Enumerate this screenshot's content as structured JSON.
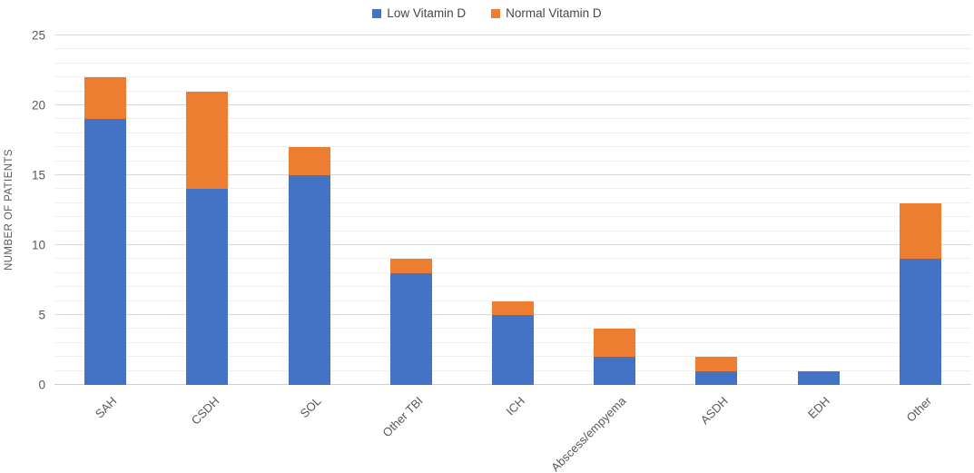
{
  "chart_data": {
    "type": "bar",
    "stacked": true,
    "categories": [
      "SAH",
      "CSDH",
      "SOL",
      "Other TBI",
      "ICH",
      "Abscess/empyema",
      "ASDH",
      "EDH",
      "Other"
    ],
    "series": [
      {
        "name": "Low Vitamin D",
        "color": "#4472C4",
        "values": [
          19,
          14,
          15,
          8,
          5,
          2,
          1,
          1,
          9
        ]
      },
      {
        "name": "Normal Vitamin D",
        "color": "#ED7D31",
        "values": [
          3,
          7,
          2,
          1,
          1,
          2,
          1,
          0,
          4
        ]
      }
    ],
    "totals": [
      22,
      21,
      17,
      9,
      6,
      4,
      2,
      1,
      13
    ],
    "xlabel": "",
    "ylabel": "NUMBER OF PATIENTS",
    "ylim": [
      0,
      25
    ],
    "y_ticks": [
      0,
      5,
      10,
      15,
      20,
      25
    ],
    "y_major_step": 5,
    "y_minor_step": 1,
    "grid": "on",
    "legend_position": "top"
  }
}
